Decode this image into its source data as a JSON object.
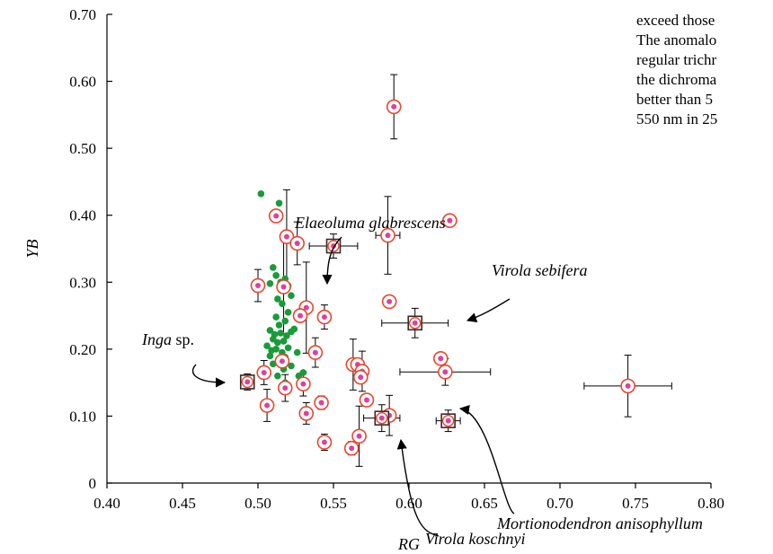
{
  "chart_data": {
    "type": "scatter",
    "title": "",
    "xlabel": "RG",
    "ylabel": "YB",
    "xlim": [
      0.4,
      0.8
    ],
    "ylim": [
      0,
      0.7
    ],
    "x_ticks": [
      "0.40",
      "0.45",
      "0.50",
      "0.55",
      "0.60",
      "0.65",
      "0.70",
      "0.75",
      "0.80"
    ],
    "y_ticks": [
      "0",
      "0.10",
      "0.20",
      "0.30",
      "0.40",
      "0.50",
      "0.60",
      "0.70"
    ],
    "grid": false,
    "legend": "none",
    "colors": {
      "open_circle": "#e8462c",
      "center_dot": "#e0409a",
      "green_dot": "#1a9a3a",
      "square": "#3a2a2a",
      "error_bar": "#000000"
    },
    "series": [
      {
        "marker": "small-green-dot",
        "points": [
          {
            "x": 0.502,
            "y": 0.432
          },
          {
            "x": 0.514,
            "y": 0.418
          },
          {
            "x": 0.51,
            "y": 0.322
          },
          {
            "x": 0.512,
            "y": 0.31
          },
          {
            "x": 0.508,
            "y": 0.298
          },
          {
            "x": 0.515,
            "y": 0.3
          },
          {
            "x": 0.518,
            "y": 0.305
          },
          {
            "x": 0.52,
            "y": 0.295
          },
          {
            "x": 0.522,
            "y": 0.28
          },
          {
            "x": 0.513,
            "y": 0.275
          },
          {
            "x": 0.516,
            "y": 0.268
          },
          {
            "x": 0.52,
            "y": 0.255
          },
          {
            "x": 0.512,
            "y": 0.248
          },
          {
            "x": 0.518,
            "y": 0.242
          },
          {
            "x": 0.514,
            "y": 0.236
          },
          {
            "x": 0.508,
            "y": 0.228
          },
          {
            "x": 0.511,
            "y": 0.222
          },
          {
            "x": 0.515,
            "y": 0.224
          },
          {
            "x": 0.519,
            "y": 0.22
          },
          {
            "x": 0.522,
            "y": 0.226
          },
          {
            "x": 0.51,
            "y": 0.215
          },
          {
            "x": 0.513,
            "y": 0.21
          },
          {
            "x": 0.517,
            "y": 0.212
          },
          {
            "x": 0.506,
            "y": 0.205
          },
          {
            "x": 0.509,
            "y": 0.198
          },
          {
            "x": 0.512,
            "y": 0.2
          },
          {
            "x": 0.516,
            "y": 0.195
          },
          {
            "x": 0.52,
            "y": 0.202
          },
          {
            "x": 0.508,
            "y": 0.19
          },
          {
            "x": 0.514,
            "y": 0.185
          },
          {
            "x": 0.518,
            "y": 0.188
          },
          {
            "x": 0.526,
            "y": 0.195
          },
          {
            "x": 0.51,
            "y": 0.178
          },
          {
            "x": 0.517,
            "y": 0.17
          },
          {
            "x": 0.522,
            "y": 0.175
          },
          {
            "x": 0.513,
            "y": 0.16
          },
          {
            "x": 0.527,
            "y": 0.16
          },
          {
            "x": 0.518,
            "y": 0.15
          },
          {
            "x": 0.53,
            "y": 0.165
          },
          {
            "x": 0.524,
            "y": 0.23
          }
        ]
      },
      {
        "marker": "open-circle-with-center-dot",
        "points": [
          {
            "x": 0.59,
            "y": 0.562,
            "y_err": 0.048
          },
          {
            "x": 0.627,
            "y": 0.392
          },
          {
            "x": 0.512,
            "y": 0.399
          },
          {
            "x": 0.519,
            "y": 0.368,
            "y_err": 0.07
          },
          {
            "x": 0.526,
            "y": 0.358,
            "y_err": 0.032
          },
          {
            "x": 0.586,
            "y": 0.37,
            "x_err": 0.008,
            "y_err": 0.058
          },
          {
            "x": 0.5,
            "y": 0.295,
            "y_err": 0.024
          },
          {
            "x": 0.517,
            "y": 0.293,
            "y_err": 0.07
          },
          {
            "x": 0.587,
            "y": 0.271
          },
          {
            "x": 0.532,
            "y": 0.262,
            "y_err": 0.068
          },
          {
            "x": 0.528,
            "y": 0.25
          },
          {
            "x": 0.544,
            "y": 0.248,
            "y_err": 0.018
          },
          {
            "x": 0.538,
            "y": 0.195,
            "y_err": 0.022
          },
          {
            "x": 0.563,
            "y": 0.177,
            "y_err": 0.038
          },
          {
            "x": 0.566,
            "y": 0.177
          },
          {
            "x": 0.569,
            "y": 0.167,
            "y_err": 0.03
          },
          {
            "x": 0.568,
            "y": 0.158
          },
          {
            "x": 0.516,
            "y": 0.182
          },
          {
            "x": 0.504,
            "y": 0.165,
            "y_err": 0.018
          },
          {
            "x": 0.621,
            "y": 0.186
          },
          {
            "x": 0.624,
            "y": 0.166,
            "x_err": 0.03,
            "y_err": 0.02
          },
          {
            "x": 0.745,
            "y": 0.145,
            "x_err": 0.029,
            "y_err": 0.046
          },
          {
            "x": 0.53,
            "y": 0.148,
            "y_err": 0.018
          },
          {
            "x": 0.518,
            "y": 0.142,
            "y_err": 0.02
          },
          {
            "x": 0.542,
            "y": 0.12,
            "y_err": 0.01
          },
          {
            "x": 0.572,
            "y": 0.124
          },
          {
            "x": 0.506,
            "y": 0.116,
            "y_err": 0.024
          },
          {
            "x": 0.532,
            "y": 0.104,
            "y_err": 0.016
          },
          {
            "x": 0.587,
            "y": 0.101,
            "y_err": 0.03
          },
          {
            "x": 0.567,
            "y": 0.07,
            "y_err": 0.045
          },
          {
            "x": 0.544,
            "y": 0.061,
            "y_err": 0.012
          },
          {
            "x": 0.562,
            "y": 0.052,
            "y_err": 0.01
          }
        ]
      },
      {
        "marker": "square-with-center-dot",
        "points": [
          {
            "x": 0.493,
            "y": 0.151,
            "y_err": 0.012
          },
          {
            "x": 0.55,
            "y": 0.354,
            "x_err": 0.016,
            "y_err": 0.018
          },
          {
            "x": 0.604,
            "y": 0.239,
            "x_err": 0.022,
            "y_err": 0.022
          },
          {
            "x": 0.626,
            "y": 0.093,
            "x_err": 0.008,
            "y_err": 0.016
          },
          {
            "x": 0.582,
            "y": 0.097,
            "x_err": 0.012,
            "y_err": 0.02
          }
        ]
      }
    ],
    "annotations": [
      {
        "text": "Elaeoluma glabrescens",
        "target": [
          0.55,
          0.354
        ]
      },
      {
        "text": "Virola sebifera",
        "target": [
          0.604,
          0.239
        ]
      },
      {
        "text": "Inga",
        "suffix": " sp.",
        "target": [
          0.493,
          0.151
        ]
      },
      {
        "text": "Mortionodendron anisophyllum",
        "target": [
          0.626,
          0.093
        ]
      },
      {
        "text": "Virola koschnyi",
        "target": [
          0.582,
          0.097
        ]
      }
    ]
  },
  "side_text": {
    "lines": [
      "exceed those",
      "The anomalo",
      "regular trichr",
      "the dichroma",
      "better than 5",
      "550 nm in 25"
    ]
  }
}
